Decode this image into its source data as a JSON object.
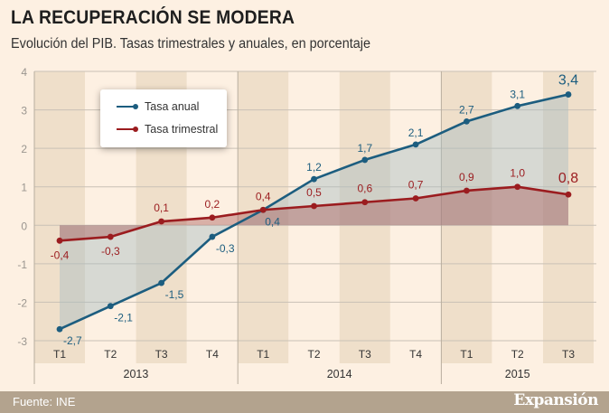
{
  "header": {
    "title": "LA RECUPERACIÓN SE MODERA",
    "subtitle": "Evolución del PIB. Tasas trimestrales y anuales, en porcentaje"
  },
  "footer": {
    "source": "Fuente: INE",
    "logo": "Expansión"
  },
  "colors": {
    "anual": "#1c5d7f",
    "trimestral": "#9b1c1f",
    "background": "#fdf0e2",
    "stripe": "#efdfca",
    "footer": "#b3a38e"
  },
  "chart_data": {
    "type": "line",
    "title": "LA RECUPERACIÓN SE MODERA",
    "subtitle": "Evolución del PIB. Tasas trimestrales y anuales, en porcentaje",
    "categories": [
      "T1",
      "T2",
      "T3",
      "T4",
      "T1",
      "T2",
      "T3",
      "T4",
      "T1",
      "T2",
      "T3"
    ],
    "years": [
      {
        "label": "2013",
        "quarters": 4
      },
      {
        "label": "2014",
        "quarters": 4
      },
      {
        "label": "2015",
        "quarters": 3
      }
    ],
    "ylim": [
      -3,
      4
    ],
    "yticks": [
      "4",
      "3",
      "2",
      "1",
      "0",
      "-1",
      "-2",
      "-3"
    ],
    "grid": true,
    "legend_position": "top-left",
    "series": [
      {
        "name": "Tasa anual",
        "values": [
          -2.7,
          -2.1,
          -1.5,
          -0.3,
          0.4,
          1.2,
          1.7,
          2.1,
          2.7,
          3.1,
          3.4
        ],
        "labels": [
          "-2,7",
          "-2,1",
          "-1,5",
          "-0,3",
          "0,4",
          "1,2",
          "1,7",
          "2,1",
          "2,7",
          "3,1",
          "3,4"
        ]
      },
      {
        "name": "Tasa trimestral",
        "values": [
          -0.4,
          -0.3,
          0.1,
          0.2,
          0.4,
          0.5,
          0.6,
          0.7,
          0.9,
          1.0,
          0.8
        ],
        "labels": [
          "-0,4",
          "-0,3",
          "0,1",
          "0,2",
          "0,4",
          "0,5",
          "0,6",
          "0,7",
          "0,9",
          "1,0",
          "0,8"
        ]
      }
    ]
  }
}
